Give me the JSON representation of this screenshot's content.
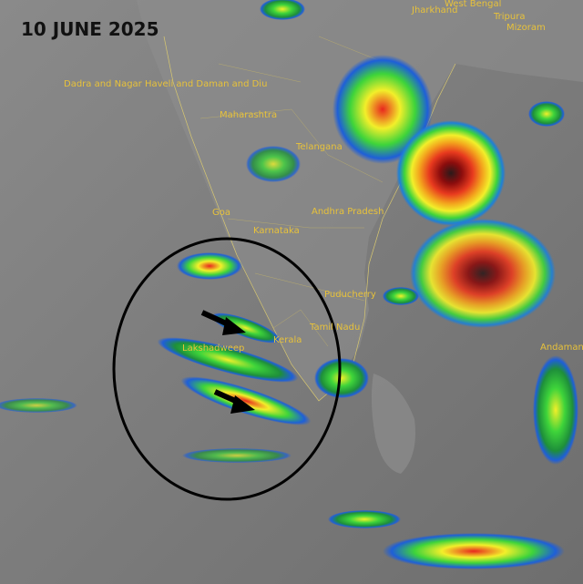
{
  "title": "10 JUNE 2025",
  "labels": [
    "Jharkhand",
    "West Bengal",
    "Tripura",
    "Mizoram",
    "Dadra and Nagar Haveli and Daman and Diu",
    "Maharashtra",
    "Telangana",
    "Goa",
    "Karnataka",
    "Andhra Pradesh",
    "Puducherry",
    "Tamil Nadu",
    "Kerala",
    "Lakshadweep",
    "Andaman"
  ]
}
